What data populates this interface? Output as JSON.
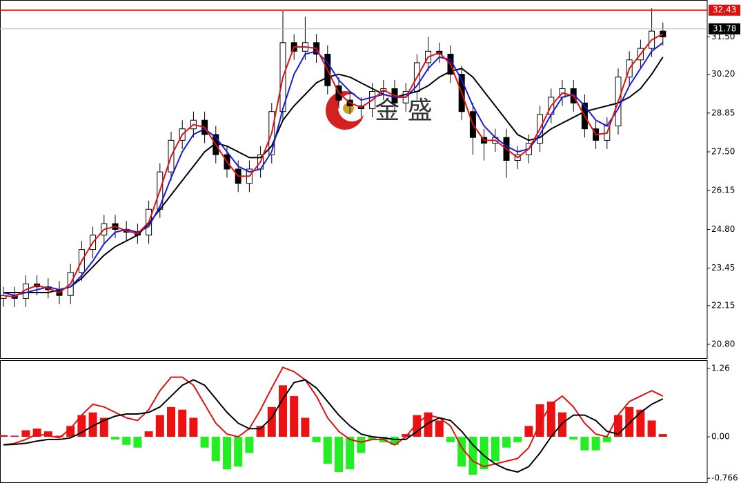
{
  "chart_data": [
    {
      "type": "candlestick",
      "watermark": "金 盛",
      "ylim": [
        20.32,
        32.76
      ],
      "yticks": [
        {
          "value": 20.8,
          "label": "20.80"
        },
        22.15,
        23.45,
        {
          "value": 24.8,
          "label": "24.80"
        },
        26.15,
        {
          "value": 27.5,
          "label": "27.50"
        },
        28.85,
        {
          "value": 30.2,
          "label": "30.20"
        },
        {
          "value": 31.5,
          "label": "31.50"
        }
      ],
      "up_color": "#ffffff",
      "down_color": "#000000",
      "open": [
        22.4,
        22.5,
        22.4,
        22.9,
        22.8,
        22.7,
        22.5,
        23.3,
        24.1,
        24.6,
        25.0,
        24.8,
        24.7,
        24.6,
        25.5,
        26.8,
        27.9,
        28.3,
        28.6,
        28.1,
        27.4,
        26.9,
        26.4,
        26.9,
        27.4,
        28.9,
        31.3,
        31.0,
        31.3,
        30.9,
        29.8,
        29.3,
        29.1,
        29.0,
        29.6,
        29.7,
        29.2,
        29.6,
        30.6,
        31.0,
        30.9,
        30.2,
        28.9,
        28.0,
        27.8,
        28.0,
        27.2,
        27.4,
        27.8,
        28.8,
        29.4,
        29.7,
        29.2,
        28.3,
        27.9,
        28.4,
        30.1,
        30.7,
        31.1,
        31.7
      ],
      "high": [
        22.8,
        22.8,
        23.2,
        23.2,
        23.1,
        23.0,
        23.6,
        24.4,
        24.9,
        25.3,
        25.3,
        25.1,
        25.0,
        25.8,
        27.1,
        28.2,
        28.6,
        28.9,
        28.9,
        28.4,
        27.7,
        27.2,
        27.2,
        27.7,
        29.2,
        32.4,
        31.6,
        32.2,
        31.6,
        31.2,
        30.1,
        29.6,
        29.4,
        29.9,
        30.0,
        30.0,
        29.9,
        30.9,
        31.5,
        31.3,
        31.2,
        30.5,
        29.2,
        28.3,
        28.3,
        28.3,
        27.7,
        28.1,
        29.1,
        29.7,
        30.0,
        30.0,
        29.5,
        28.6,
        28.7,
        30.4,
        31.0,
        31.4,
        32.5,
        32.0
      ],
      "low": [
        22.1,
        22.1,
        22.1,
        22.5,
        22.4,
        22.2,
        22.2,
        23.0,
        23.8,
        24.3,
        24.5,
        24.4,
        24.3,
        24.3,
        25.2,
        26.5,
        27.6,
        28.0,
        27.8,
        27.1,
        26.6,
        26.1,
        26.1,
        26.6,
        27.1,
        28.6,
        30.7,
        30.7,
        30.6,
        29.5,
        29.0,
        28.8,
        28.7,
        28.7,
        29.3,
        28.9,
        28.9,
        29.3,
        30.3,
        30.6,
        29.9,
        28.6,
        27.4,
        27.2,
        27.5,
        26.6,
        26.9,
        27.1,
        27.5,
        28.5,
        29.1,
        28.9,
        28.0,
        27.6,
        27.6,
        28.1,
        29.8,
        30.4,
        30.8,
        31.2
      ],
      "close": [
        22.5,
        22.4,
        22.9,
        22.8,
        22.7,
        22.5,
        23.3,
        24.1,
        24.6,
        25.0,
        24.8,
        24.7,
        24.6,
        25.5,
        26.8,
        27.9,
        28.3,
        28.6,
        28.1,
        27.4,
        26.9,
        26.4,
        26.9,
        27.4,
        28.9,
        31.3,
        31.0,
        31.3,
        30.9,
        29.8,
        29.3,
        29.1,
        29.0,
        29.6,
        29.7,
        29.2,
        29.6,
        30.6,
        31.0,
        30.9,
        30.2,
        28.9,
        28.0,
        27.8,
        28.0,
        27.2,
        27.4,
        27.8,
        28.8,
        29.4,
        29.7,
        29.2,
        28.3,
        27.9,
        28.4,
        30.1,
        30.7,
        31.1,
        31.7,
        31.5
      ],
      "series": [
        {
          "color": "#000000",
          "values": [
            22.6,
            22.6,
            22.6,
            22.6,
            22.6,
            22.7,
            22.8,
            23.1,
            23.5,
            23.9,
            24.2,
            24.4,
            24.6,
            25.0,
            25.5,
            26.0,
            26.5,
            27.0,
            27.5,
            27.8,
            27.7,
            27.5,
            27.3,
            27.3,
            27.7,
            28.6,
            29.1,
            29.5,
            29.9,
            30.1,
            30.2,
            30.1,
            29.9,
            29.7,
            29.5,
            29.4,
            29.5,
            29.6,
            29.8,
            30.1,
            30.3,
            30.4,
            30.1,
            29.6,
            29.1,
            28.6,
            28.1,
            27.9,
            28.0,
            28.3,
            28.5,
            28.7,
            28.9,
            29.0,
            29.1,
            29.2,
            29.4,
            29.7,
            30.2,
            30.8
          ]
        },
        {
          "color": "#1a1adc",
          "values": [
            22.6,
            22.5,
            22.6,
            22.7,
            22.8,
            22.7,
            22.8,
            23.2,
            23.7,
            24.3,
            24.7,
            24.8,
            24.7,
            24.9,
            25.6,
            26.6,
            27.5,
            28.1,
            28.3,
            28.0,
            27.5,
            27.0,
            26.8,
            26.9,
            27.5,
            29.0,
            30.2,
            30.9,
            31.0,
            30.6,
            30.0,
            29.6,
            29.3,
            29.4,
            29.5,
            29.4,
            29.4,
            29.8,
            30.4,
            30.8,
            30.7,
            30.0,
            29.1,
            28.4,
            28.0,
            27.7,
            27.5,
            27.6,
            28.1,
            28.8,
            29.4,
            29.5,
            29.1,
            28.6,
            28.4,
            29.0,
            29.8,
            30.4,
            31.0,
            31.3
          ]
        },
        {
          "color": "#e01010",
          "values": [
            22.5,
            22.45,
            22.7,
            22.85,
            22.75,
            22.6,
            22.9,
            23.7,
            24.35,
            24.8,
            24.9,
            24.75,
            24.65,
            25.05,
            26.15,
            27.35,
            28.1,
            28.45,
            28.35,
            27.75,
            27.15,
            26.65,
            26.65,
            27.15,
            28.15,
            30.1,
            31.15,
            31.15,
            31.1,
            30.35,
            29.55,
            29.2,
            29.05,
            29.3,
            29.65,
            29.45,
            29.4,
            30.1,
            30.8,
            30.95,
            30.55,
            29.55,
            28.45,
            27.9,
            27.9,
            27.6,
            27.3,
            27.6,
            28.3,
            29.1,
            29.55,
            29.45,
            28.75,
            28.1,
            28.15,
            29.25,
            30.4,
            30.9,
            31.4,
            31.6
          ]
        }
      ],
      "price_lines": [
        {
          "value": 32.43,
          "color": "#e01010"
        },
        {
          "value": 31.78,
          "color": "#000000"
        }
      ]
    },
    {
      "type": "macd",
      "ylim": [
        -0.84,
        1.4
      ],
      "yticks": [
        1.26,
        {
          "value": 0,
          "label": "0.00"
        },
        -0.766
      ],
      "up_color": "#ee1111",
      "down_color": "#22ee22",
      "histogram": [
        0.03,
        0.02,
        0.12,
        0.15,
        0.1,
        0.02,
        0.2,
        0.4,
        0.45,
        0.35,
        -0.05,
        -0.15,
        -0.2,
        0.1,
        0.4,
        0.55,
        0.5,
        0.35,
        -0.2,
        -0.45,
        -0.6,
        -0.55,
        -0.3,
        0.2,
        0.55,
        0.95,
        0.75,
        0.35,
        -0.1,
        -0.5,
        -0.65,
        -0.6,
        -0.3,
        -0.05,
        -0.1,
        -0.15,
        0.05,
        0.4,
        0.45,
        0.3,
        -0.1,
        -0.55,
        -0.7,
        -0.6,
        -0.45,
        -0.2,
        -0.1,
        0.2,
        0.6,
        0.65,
        0.45,
        -0.05,
        -0.25,
        -0.25,
        -0.1,
        0.4,
        0.55,
        0.5,
        0.3,
        0.05
      ],
      "series": [
        {
          "color": "#e01010",
          "values": [
            -0.15,
            -0.12,
            -0.05,
            0.05,
            0.02,
            -0.02,
            0.15,
            0.4,
            0.6,
            0.55,
            0.45,
            0.35,
            0.3,
            0.5,
            0.85,
            1.1,
            1.1,
            0.95,
            0.6,
            0.25,
            0.05,
            0.0,
            0.15,
            0.5,
            0.9,
            1.28,
            1.2,
            1.05,
            0.75,
            0.35,
            0.1,
            -0.05,
            -0.1,
            -0.05,
            -0.05,
            -0.15,
            0.0,
            0.25,
            0.4,
            0.35,
            0.2,
            -0.2,
            -0.45,
            -0.55,
            -0.5,
            -0.45,
            -0.4,
            -0.2,
            0.25,
            0.6,
            0.75,
            0.55,
            0.25,
            0.05,
            0.0,
            0.4,
            0.65,
            0.75,
            0.85,
            0.75
          ]
        },
        {
          "color": "#000000",
          "values": [
            -0.15,
            -0.14,
            -0.12,
            -0.08,
            -0.05,
            -0.05,
            -0.02,
            0.08,
            0.2,
            0.3,
            0.38,
            0.42,
            0.42,
            0.45,
            0.55,
            0.75,
            0.95,
            1.05,
            0.95,
            0.7,
            0.45,
            0.25,
            0.15,
            0.15,
            0.35,
            0.7,
            1.0,
            1.05,
            0.9,
            0.65,
            0.4,
            0.2,
            0.05,
            0.0,
            -0.02,
            -0.05,
            -0.05,
            0.1,
            0.25,
            0.35,
            0.3,
            0.1,
            -0.15,
            -0.35,
            -0.5,
            -0.6,
            -0.65,
            -0.55,
            -0.3,
            0.0,
            0.25,
            0.4,
            0.4,
            0.3,
            0.1,
            0.05,
            0.25,
            0.45,
            0.6,
            0.7
          ]
        }
      ]
    }
  ]
}
